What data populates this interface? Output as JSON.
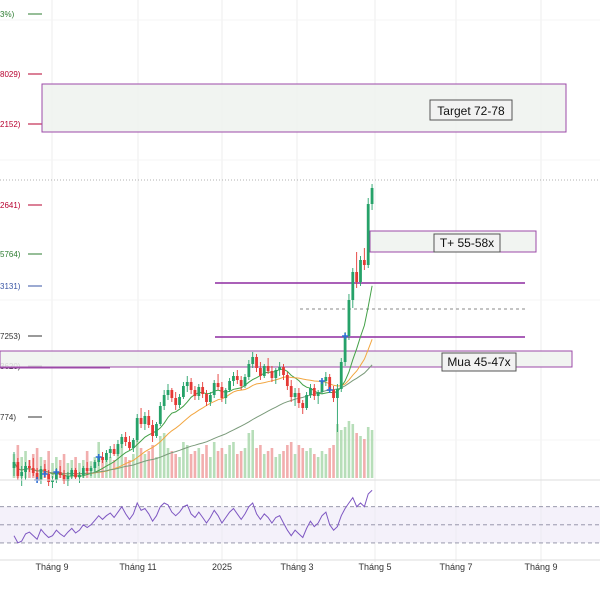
{
  "chart_data": {
    "type": "candlestick",
    "x_ticks": [
      "Tháng 9",
      "Tháng 11",
      "2025",
      "Tháng 3",
      "Tháng 5",
      "Tháng 7",
      "Tháng 9"
    ],
    "price_axis_partial_labels": [
      {
        "text": "3%)",
        "color": "#2e7d32"
      },
      {
        "text": "8029)",
        "color": "#b7002f"
      },
      {
        "text": "2152)",
        "color": "#b7002f"
      },
      {
        "text": "2641)",
        "color": "#b7002f"
      },
      {
        "text": "5764)",
        "color": "#2e7d32"
      },
      {
        "text": "3131)",
        "color": "#3a56a5"
      },
      {
        "text": "7253)",
        "color": "#333333"
      },
      {
        "text": "3620)",
        "color": "#333333"
      },
      {
        "text": "774)",
        "color": "#333333"
      }
    ],
    "zones": [
      {
        "label": "Target 72-78"
      },
      {
        "label": "T+ 55-58x"
      },
      {
        "label": "Mua 45-47x"
      }
    ],
    "ohlc": [
      [
        35.0,
        36.6,
        34.2,
        35.6
      ],
      [
        35.6,
        36.0,
        33.8,
        34.2
      ],
      [
        34.2,
        35.2,
        33.2,
        34.6
      ],
      [
        34.6,
        35.6,
        33.8,
        35.2
      ],
      [
        35.2,
        35.8,
        34.6,
        35.0
      ],
      [
        35.0,
        36.0,
        34.2,
        34.5
      ],
      [
        34.5,
        35.0,
        33.6,
        33.8
      ],
      [
        33.8,
        35.2,
        33.4,
        34.9
      ],
      [
        34.9,
        35.4,
        34.0,
        34.4
      ],
      [
        34.4,
        34.8,
        33.2,
        33.6
      ],
      [
        33.6,
        34.2,
        33.0,
        33.8
      ],
      [
        33.8,
        35.0,
        33.5,
        34.6
      ],
      [
        34.6,
        35.2,
        34.0,
        34.3
      ],
      [
        34.3,
        34.8,
        33.4,
        33.7
      ],
      [
        33.7,
        34.6,
        33.2,
        34.2
      ],
      [
        34.2,
        35.0,
        33.9,
        34.8
      ],
      [
        34.8,
        35.0,
        33.9,
        34.1
      ],
      [
        34.1,
        34.6,
        33.5,
        34.3
      ],
      [
        34.3,
        35.2,
        34.0,
        35.0
      ],
      [
        35.0,
        35.6,
        34.4,
        34.7
      ],
      [
        34.7,
        35.2,
        34.2,
        35.0
      ],
      [
        35.0,
        35.8,
        34.6,
        35.6
      ],
      [
        35.6,
        36.4,
        35.2,
        36.1
      ],
      [
        36.1,
        36.6,
        35.5,
        35.8
      ],
      [
        35.8,
        36.8,
        35.6,
        36.5
      ],
      [
        36.5,
        37.2,
        36.0,
        36.9
      ],
      [
        36.9,
        37.4,
        36.2,
        36.4
      ],
      [
        36.4,
        37.8,
        36.2,
        37.4
      ],
      [
        37.4,
        38.4,
        37.0,
        38.1
      ],
      [
        38.1,
        38.6,
        37.2,
        37.6
      ],
      [
        37.6,
        38.2,
        36.8,
        37.0
      ],
      [
        37.0,
        38.0,
        36.6,
        37.8
      ],
      [
        37.8,
        40.4,
        37.6,
        40.0
      ],
      [
        40.0,
        41.0,
        39.0,
        39.4
      ],
      [
        39.4,
        40.6,
        38.8,
        40.2
      ],
      [
        40.2,
        40.8,
        39.0,
        39.3
      ],
      [
        39.3,
        39.8,
        37.6,
        38.2
      ],
      [
        38.2,
        39.6,
        38.0,
        39.4
      ],
      [
        39.4,
        41.6,
        39.2,
        41.2
      ],
      [
        41.2,
        42.8,
        40.8,
        42.3
      ],
      [
        42.3,
        43.4,
        41.8,
        42.8
      ],
      [
        42.8,
        43.0,
        41.6,
        42.0
      ],
      [
        42.0,
        42.6,
        40.8,
        41.3
      ],
      [
        41.3,
        42.4,
        41.0,
        42.1
      ],
      [
        42.1,
        43.6,
        41.9,
        43.2
      ],
      [
        43.2,
        44.2,
        42.6,
        43.6
      ],
      [
        43.6,
        44.0,
        42.4,
        42.8
      ],
      [
        42.8,
        43.2,
        41.8,
        42.2
      ],
      [
        42.2,
        43.4,
        41.8,
        43.1
      ],
      [
        43.1,
        43.6,
        42.0,
        42.4
      ],
      [
        42.4,
        42.8,
        41.2,
        41.6
      ],
      [
        41.6,
        42.6,
        41.2,
        42.3
      ],
      [
        42.3,
        43.8,
        42.0,
        43.5
      ],
      [
        43.5,
        44.4,
        42.8,
        43.1
      ],
      [
        43.1,
        43.6,
        41.6,
        42.0
      ],
      [
        42.0,
        43.0,
        41.4,
        42.8
      ],
      [
        42.8,
        44.0,
        42.6,
        43.7
      ],
      [
        43.7,
        44.6,
        43.2,
        44.2
      ],
      [
        44.2,
        44.8,
        43.4,
        43.8
      ],
      [
        43.8,
        44.2,
        42.8,
        43.2
      ],
      [
        43.2,
        44.4,
        43.0,
        44.1
      ],
      [
        44.1,
        45.8,
        43.8,
        45.4
      ],
      [
        45.4,
        46.6,
        45.0,
        46.1
      ],
      [
        46.1,
        46.4,
        44.6,
        45.0
      ],
      [
        45.0,
        45.6,
        43.8,
        44.2
      ],
      [
        44.2,
        45.4,
        44.0,
        45.2
      ],
      [
        45.2,
        46.0,
        44.4,
        44.7
      ],
      [
        44.7,
        45.2,
        43.6,
        44.0
      ],
      [
        44.0,
        45.0,
        43.4,
        44.8
      ],
      [
        44.8,
        45.6,
        44.2,
        45.1
      ],
      [
        45.1,
        45.4,
        43.8,
        44.3
      ],
      [
        44.3,
        44.6,
        42.8,
        43.2
      ],
      [
        43.2,
        43.8,
        41.6,
        42.1
      ],
      [
        42.1,
        43.0,
        41.2,
        42.5
      ],
      [
        42.5,
        43.0,
        41.0,
        41.5
      ],
      [
        41.5,
        41.8,
        40.4,
        41.0
      ],
      [
        41.0,
        42.6,
        40.8,
        42.3
      ],
      [
        42.3,
        43.4,
        42.0,
        43.0
      ],
      [
        43.0,
        43.4,
        41.8,
        42.2
      ],
      [
        42.2,
        42.8,
        41.4,
        42.6
      ],
      [
        42.6,
        44.0,
        42.4,
        43.7
      ],
      [
        43.7,
        44.6,
        43.2,
        44.1
      ],
      [
        44.1,
        44.4,
        42.6,
        42.8
      ],
      [
        42.8,
        43.2,
        41.6,
        42.0
      ],
      [
        42.0,
        43.4,
        38.6,
        42.9
      ],
      [
        42.9,
        46.0,
        42.6,
        45.6
      ],
      [
        45.6,
        48.6,
        45.2,
        48.2
      ],
      [
        48.2,
        52.4,
        47.8,
        51.8
      ],
      [
        51.8,
        55.0,
        51.0,
        54.6
      ],
      [
        54.6,
        56.6,
        53.0,
        53.6
      ],
      [
        53.6,
        56.2,
        53.2,
        55.8
      ],
      [
        55.8,
        57.0,
        54.8,
        55.3
      ],
      [
        55.3,
        62.0,
        55.0,
        61.4
      ],
      [
        61.4,
        63.4,
        60.8,
        63.0
      ]
    ],
    "volume": [
      0.4,
      0.55,
      0.35,
      0.45,
      0.3,
      0.4,
      0.5,
      0.35,
      0.3,
      0.45,
      0.25,
      0.35,
      0.3,
      0.4,
      0.25,
      0.3,
      0.35,
      0.25,
      0.3,
      0.45,
      0.28,
      0.35,
      0.6,
      0.3,
      0.4,
      0.35,
      0.3,
      0.55,
      0.65,
      0.35,
      0.3,
      0.4,
      0.95,
      0.5,
      0.4,
      0.45,
      0.55,
      0.35,
      0.7,
      0.75,
      0.5,
      0.45,
      0.4,
      0.35,
      0.6,
      0.55,
      0.4,
      0.45,
      0.5,
      0.4,
      0.55,
      0.35,
      0.6,
      0.45,
      0.5,
      0.4,
      0.55,
      0.6,
      0.4,
      0.45,
      0.5,
      0.75,
      0.8,
      0.5,
      0.55,
      0.4,
      0.45,
      0.5,
      0.35,
      0.4,
      0.45,
      0.55,
      0.6,
      0.4,
      0.55,
      0.5,
      0.45,
      0.5,
      0.4,
      0.35,
      0.45,
      0.4,
      0.5,
      0.55,
      0.9,
      0.8,
      0.85,
      0.95,
      0.9,
      0.75,
      0.7,
      0.65,
      0.85,
      0.8
    ],
    "rsi": [
      38,
      30,
      32,
      40,
      42,
      38,
      34,
      45,
      40,
      36,
      38,
      44,
      40,
      37,
      42,
      46,
      41,
      44,
      50,
      47,
      50,
      55,
      60,
      56,
      60,
      63,
      58,
      64,
      70,
      62,
      56,
      62,
      74,
      66,
      68,
      62,
      54,
      60,
      70,
      74,
      72,
      64,
      60,
      64,
      70,
      72,
      62,
      58,
      64,
      58,
      52,
      58,
      66,
      60,
      52,
      58,
      64,
      68,
      62,
      56,
      62,
      70,
      74,
      62,
      56,
      62,
      58,
      52,
      58,
      60,
      52,
      44,
      38,
      44,
      40,
      36,
      46,
      54,
      48,
      52,
      60,
      64,
      50,
      44,
      48,
      60,
      68,
      74,
      80,
      70,
      74,
      70,
      84,
      88
    ],
    "rsi_levels": [
      70,
      50,
      30
    ]
  }
}
